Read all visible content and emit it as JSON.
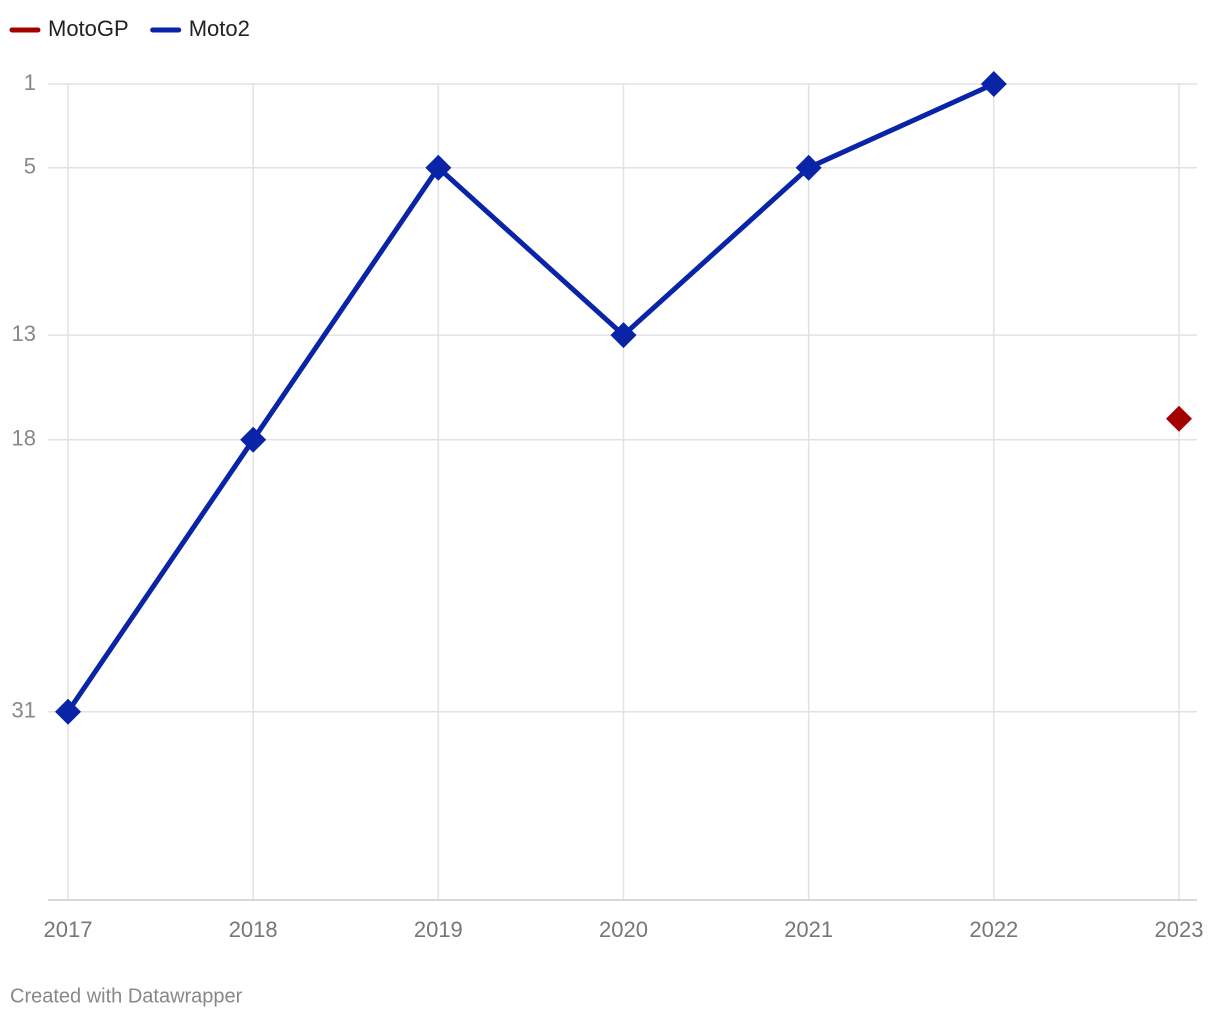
{
  "chart_data": {
    "type": "line",
    "categories": [
      "2017",
      "2018",
      "2019",
      "2020",
      "2021",
      "2022",
      "2023"
    ],
    "series": [
      {
        "name": "MotoGP",
        "color": "#a50000",
        "values": [
          null,
          null,
          null,
          null,
          null,
          null,
          17
        ]
      },
      {
        "name": "Moto2",
        "color": "#0a24a8",
        "values": [
          31,
          18,
          5,
          13,
          5,
          1,
          null
        ]
      }
    ],
    "ylim": [
      1,
      40
    ],
    "y_inverted": true,
    "yticks": [
      1,
      5,
      13,
      18,
      31
    ],
    "grid": true,
    "legend": "top-left",
    "credit": "Created with Datawrapper"
  }
}
